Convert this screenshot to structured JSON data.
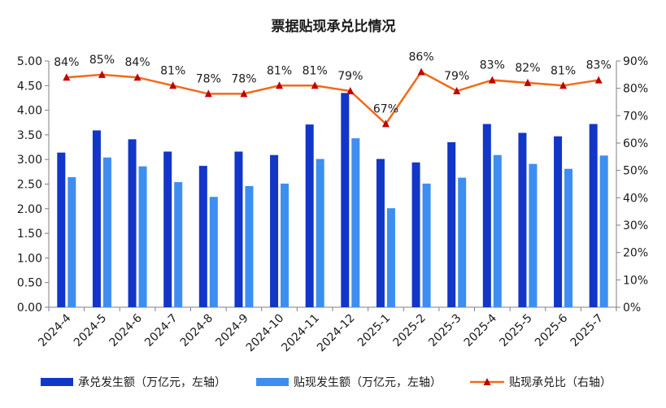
{
  "chart_data": {
    "type": "bar",
    "title": "票据贴现承兑比情况",
    "categories": [
      "2024-4",
      "2024-5",
      "2024-6",
      "2024-7",
      "2024-8",
      "2024-9",
      "2024-10",
      "2024-11",
      "2024-12",
      "2025-1",
      "2025-2",
      "2025-3",
      "2025-4",
      "2025-5",
      "2025-6",
      "2025-7"
    ],
    "series": [
      {
        "name": "承兑发生额（万亿元，左轴）",
        "type": "bar",
        "axis": "left",
        "color": "#1236c8",
        "values": [
          3.14,
          3.59,
          3.41,
          3.16,
          2.87,
          3.16,
          3.09,
          3.71,
          4.35,
          3.01,
          2.94,
          3.35,
          3.72,
          3.54,
          3.47,
          3.72
        ]
      },
      {
        "name": "贴现发生额（万亿元，左轴）",
        "type": "bar",
        "axis": "left",
        "color": "#3d8ef0",
        "values": [
          2.64,
          3.04,
          2.86,
          2.54,
          2.24,
          2.46,
          2.51,
          3.01,
          3.43,
          2.01,
          2.51,
          2.63,
          3.09,
          2.91,
          2.81,
          3.08
        ]
      },
      {
        "name": "贴现承兑比（右轴）",
        "type": "line",
        "axis": "right",
        "color": "#f26a1b",
        "marker_color": "#c00000",
        "values": [
          84,
          85,
          84,
          81,
          78,
          78,
          81,
          81,
          79,
          67,
          86,
          79,
          83,
          82,
          81,
          83
        ],
        "labels": [
          "84%",
          "85%",
          "84%",
          "81%",
          "78%",
          "78%",
          "81%",
          "81%",
          "79%",
          "67%",
          "86%",
          "79%",
          "83%",
          "82%",
          "81%",
          "83%"
        ]
      }
    ],
    "y_left": {
      "min": 0,
      "max": 5,
      "step": 0.5,
      "tick_labels": [
        "0.00",
        "0.50",
        "1.00",
        "1.50",
        "2.00",
        "2.50",
        "3.00",
        "3.50",
        "4.00",
        "4.50",
        "5.00"
      ]
    },
    "y_right": {
      "min": 0,
      "max": 90,
      "step": 10,
      "tick_labels": [
        "0%",
        "10%",
        "20%",
        "30%",
        "40%",
        "50%",
        "60%",
        "70%",
        "80%",
        "90%"
      ]
    },
    "grid": false,
    "legend_position": "bottom"
  }
}
